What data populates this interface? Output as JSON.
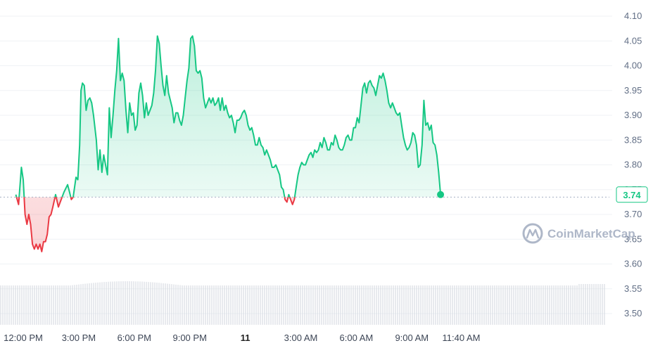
{
  "chart_data": {
    "type": "line",
    "title": "",
    "xlabel": "",
    "ylabel": "",
    "ylim": [
      3.47,
      4.13
    ],
    "y_ticks": [
      "4.10",
      "4.05",
      "4.00",
      "3.95",
      "3.90",
      "3.85",
      "3.80",
      "3.75",
      "3.70",
      "3.65",
      "3.60",
      "3.55",
      "3.50"
    ],
    "x_ticks": [
      {
        "label": "12:00 PM",
        "hour": 12
      },
      {
        "label": "3:00 PM",
        "hour": 15
      },
      {
        "label": "6:00 PM",
        "hour": 18
      },
      {
        "label": "9:00 PM",
        "hour": 21
      },
      {
        "label": "11",
        "hour": 24,
        "bold": true
      },
      {
        "label": "3:00 AM",
        "hour": 27
      },
      {
        "label": "6:00 AM",
        "hour": 30
      },
      {
        "label": "9:00 AM",
        "hour": 33
      },
      {
        "label": "11:40 AM",
        "hour": 35.67
      }
    ],
    "baseline": 3.735,
    "current_price": "3.74",
    "colors": {
      "up": "#16c784",
      "down": "#ea3943",
      "grid": "#eff2f5",
      "baseline": "#a6b0c3",
      "volume": "#d1d6dd"
    },
    "series": [
      {
        "values": [
          [
            11.6,
            3.74
          ],
          [
            11.75,
            3.72
          ],
          [
            11.9,
            3.795
          ],
          [
            12.0,
            3.77
          ],
          [
            12.1,
            3.7
          ],
          [
            12.2,
            3.68
          ],
          [
            12.3,
            3.7
          ],
          [
            12.4,
            3.68
          ],
          [
            12.5,
            3.64
          ],
          [
            12.6,
            3.63
          ],
          [
            12.7,
            3.64
          ],
          [
            12.8,
            3.63
          ],
          [
            12.9,
            3.64
          ],
          [
            13.0,
            3.625
          ],
          [
            13.1,
            3.645
          ],
          [
            13.2,
            3.645
          ],
          [
            13.3,
            3.66
          ],
          [
            13.4,
            3.695
          ],
          [
            13.5,
            3.7
          ],
          [
            13.6,
            3.715
          ],
          [
            13.75,
            3.74
          ],
          [
            13.9,
            3.715
          ],
          [
            14.0,
            3.725
          ],
          [
            14.2,
            3.745
          ],
          [
            14.4,
            3.76
          ],
          [
            14.5,
            3.745
          ],
          [
            14.6,
            3.73
          ],
          [
            14.7,
            3.735
          ],
          [
            14.85,
            3.775
          ],
          [
            14.95,
            3.77
          ],
          [
            15.05,
            3.84
          ],
          [
            15.12,
            3.95
          ],
          [
            15.2,
            3.965
          ],
          [
            15.3,
            3.96
          ],
          [
            15.4,
            3.91
          ],
          [
            15.5,
            3.93
          ],
          [
            15.6,
            3.935
          ],
          [
            15.7,
            3.925
          ],
          [
            15.8,
            3.9
          ],
          [
            15.95,
            3.85
          ],
          [
            16.05,
            3.79
          ],
          [
            16.15,
            3.83
          ],
          [
            16.25,
            3.785
          ],
          [
            16.35,
            3.82
          ],
          [
            16.45,
            3.8
          ],
          [
            16.55,
            3.78
          ],
          [
            16.65,
            3.915
          ],
          [
            16.75,
            3.855
          ],
          [
            16.85,
            3.9
          ],
          [
            16.95,
            3.95
          ],
          [
            17.05,
            3.99
          ],
          [
            17.15,
            4.055
          ],
          [
            17.25,
            3.97
          ],
          [
            17.35,
            3.985
          ],
          [
            17.45,
            3.97
          ],
          [
            17.55,
            3.91
          ],
          [
            17.65,
            3.865
          ],
          [
            17.75,
            3.925
          ],
          [
            17.85,
            3.9
          ],
          [
            17.95,
            3.905
          ],
          [
            18.05,
            3.87
          ],
          [
            18.15,
            3.88
          ],
          [
            18.25,
            3.945
          ],
          [
            18.35,
            3.965
          ],
          [
            18.45,
            3.94
          ],
          [
            18.55,
            3.895
          ],
          [
            18.65,
            3.925
          ],
          [
            18.75,
            3.9
          ],
          [
            18.85,
            3.91
          ],
          [
            18.95,
            3.92
          ],
          [
            19.05,
            3.945
          ],
          [
            19.15,
            3.99
          ],
          [
            19.25,
            4.06
          ],
          [
            19.35,
            4.045
          ],
          [
            19.45,
            4.0
          ],
          [
            19.55,
            3.96
          ],
          [
            19.65,
            3.94
          ],
          [
            19.75,
            3.98
          ],
          [
            19.85,
            3.945
          ],
          [
            19.95,
            3.93
          ],
          [
            20.05,
            3.915
          ],
          [
            20.15,
            3.885
          ],
          [
            20.25,
            3.905
          ],
          [
            20.35,
            3.905
          ],
          [
            20.45,
            3.89
          ],
          [
            20.55,
            3.88
          ],
          [
            20.65,
            3.9
          ],
          [
            20.75,
            3.935
          ],
          [
            20.85,
            3.97
          ],
          [
            20.95,
            3.995
          ],
          [
            21.05,
            4.055
          ],
          [
            21.15,
            4.06
          ],
          [
            21.25,
            4.04
          ],
          [
            21.35,
            3.99
          ],
          [
            21.45,
            3.985
          ],
          [
            21.55,
            3.99
          ],
          [
            21.65,
            3.975
          ],
          [
            21.75,
            3.935
          ],
          [
            21.85,
            3.915
          ],
          [
            21.95,
            3.925
          ],
          [
            22.05,
            3.935
          ],
          [
            22.15,
            3.925
          ],
          [
            22.25,
            3.935
          ],
          [
            22.35,
            3.92
          ],
          [
            22.45,
            3.925
          ],
          [
            22.55,
            3.935
          ],
          [
            22.65,
            3.91
          ],
          [
            22.75,
            3.935
          ],
          [
            22.85,
            3.91
          ],
          [
            22.95,
            3.92
          ],
          [
            23.05,
            3.905
          ],
          [
            23.15,
            3.895
          ],
          [
            23.25,
            3.9
          ],
          [
            23.35,
            3.885
          ],
          [
            23.45,
            3.865
          ],
          [
            23.55,
            3.89
          ],
          [
            23.65,
            3.89
          ],
          [
            23.75,
            3.895
          ],
          [
            23.85,
            3.905
          ],
          [
            23.95,
            3.91
          ],
          [
            24.05,
            3.9
          ],
          [
            24.15,
            3.88
          ],
          [
            24.25,
            3.87
          ],
          [
            24.35,
            3.875
          ],
          [
            24.45,
            3.86
          ],
          [
            24.55,
            3.84
          ],
          [
            24.65,
            3.84
          ],
          [
            24.75,
            3.855
          ],
          [
            24.85,
            3.84
          ],
          [
            24.95,
            3.835
          ],
          [
            25.05,
            3.82
          ],
          [
            25.15,
            3.83
          ],
          [
            25.25,
            3.82
          ],
          [
            25.35,
            3.81
          ],
          [
            25.45,
            3.795
          ],
          [
            25.55,
            3.795
          ],
          [
            25.65,
            3.8
          ],
          [
            25.75,
            3.79
          ],
          [
            25.85,
            3.78
          ],
          [
            25.95,
            3.755
          ],
          [
            26.05,
            3.75
          ],
          [
            26.15,
            3.73
          ],
          [
            26.25,
            3.725
          ],
          [
            26.35,
            3.74
          ],
          [
            26.45,
            3.73
          ],
          [
            26.55,
            3.72
          ],
          [
            26.65,
            3.73
          ],
          [
            26.75,
            3.755
          ],
          [
            26.85,
            3.78
          ],
          [
            26.95,
            3.795
          ],
          [
            27.05,
            3.805
          ],
          [
            27.15,
            3.8
          ],
          [
            27.25,
            3.8
          ],
          [
            27.35,
            3.81
          ],
          [
            27.45,
            3.82
          ],
          [
            27.55,
            3.825
          ],
          [
            27.65,
            3.815
          ],
          [
            27.75,
            3.83
          ],
          [
            27.85,
            3.825
          ],
          [
            27.95,
            3.83
          ],
          [
            28.05,
            3.845
          ],
          [
            28.15,
            3.835
          ],
          [
            28.25,
            3.855
          ],
          [
            28.35,
            3.845
          ],
          [
            28.45,
            3.83
          ],
          [
            28.55,
            3.83
          ],
          [
            28.65,
            3.845
          ],
          [
            28.75,
            3.84
          ],
          [
            28.85,
            3.86
          ],
          [
            28.95,
            3.85
          ],
          [
            29.05,
            3.835
          ],
          [
            29.15,
            3.83
          ],
          [
            29.25,
            3.83
          ],
          [
            29.35,
            3.84
          ],
          [
            29.45,
            3.855
          ],
          [
            29.55,
            3.86
          ],
          [
            29.65,
            3.85
          ],
          [
            29.75,
            3.85
          ],
          [
            29.85,
            3.875
          ],
          [
            29.95,
            3.875
          ],
          [
            30.05,
            3.895
          ],
          [
            30.15,
            3.885
          ],
          [
            30.25,
            3.92
          ],
          [
            30.35,
            3.955
          ],
          [
            30.45,
            3.965
          ],
          [
            30.55,
            3.945
          ],
          [
            30.65,
            3.965
          ],
          [
            30.75,
            3.97
          ],
          [
            30.85,
            3.96
          ],
          [
            30.95,
            3.955
          ],
          [
            31.05,
            3.94
          ],
          [
            31.15,
            3.96
          ],
          [
            31.25,
            3.98
          ],
          [
            31.35,
            3.975
          ],
          [
            31.45,
            3.985
          ],
          [
            31.55,
            3.97
          ],
          [
            31.65,
            3.95
          ],
          [
            31.75,
            3.925
          ],
          [
            31.85,
            3.915
          ],
          [
            31.95,
            3.925
          ],
          [
            32.05,
            3.915
          ],
          [
            32.15,
            3.905
          ],
          [
            32.25,
            3.9
          ],
          [
            32.35,
            3.905
          ],
          [
            32.45,
            3.88
          ],
          [
            32.55,
            3.855
          ],
          [
            32.65,
            3.84
          ],
          [
            32.75,
            3.83
          ],
          [
            32.85,
            3.835
          ],
          [
            32.95,
            3.845
          ],
          [
            33.05,
            3.865
          ],
          [
            33.15,
            3.86
          ],
          [
            33.25,
            3.84
          ],
          [
            33.35,
            3.795
          ],
          [
            33.45,
            3.8
          ],
          [
            33.55,
            3.84
          ],
          [
            33.65,
            3.93
          ],
          [
            33.75,
            3.88
          ],
          [
            33.85,
            3.885
          ],
          [
            33.95,
            3.87
          ],
          [
            34.05,
            3.88
          ],
          [
            34.15,
            3.845
          ],
          [
            34.25,
            3.84
          ],
          [
            34.35,
            3.82
          ],
          [
            34.45,
            3.785
          ],
          [
            34.55,
            3.74
          ]
        ]
      }
    ]
  },
  "watermark": {
    "brand": "CoinMarketCap",
    "icon": "coinmarketcap-logo-icon"
  }
}
